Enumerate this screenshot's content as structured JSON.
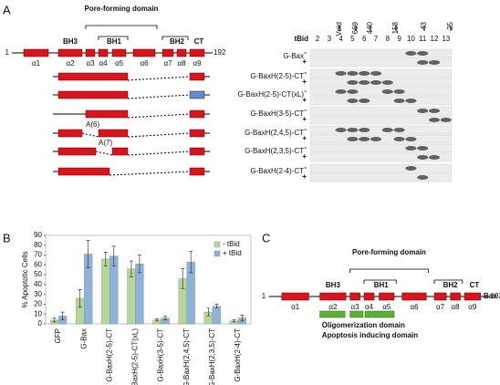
{
  "panel_a": {
    "label": "A",
    "start": "1",
    "end": "192",
    "pore_title": "Pore-forming domain",
    "domains": [
      "BH3",
      "BH1",
      "BH2",
      "CT"
    ],
    "helices": [
      "α1",
      "α2",
      "α3",
      "α4",
      "α5",
      "α6",
      "α7",
      "α8",
      "α9"
    ],
    "annotations": [
      "A(6)",
      "A(7)"
    ],
    "constructs": [
      "G-Bax",
      "G-BaxH(2-5)-CT",
      "G-BaxH(2-5)-CT(xL)",
      "G-BaxH(3-5)-CT",
      "G-BaxH(2,4,5)-CT",
      "G-BaxH(2,3,5)-CT",
      "G-BaxH(2-4)-CT"
    ],
    "gel": {
      "tbid": "tBid",
      "lanes": [
        "2",
        "3",
        "4",
        "5",
        "6",
        "7",
        "8",
        "9",
        "10",
        "11",
        "12",
        "13"
      ],
      "markers": [
        "Void",
        "669",
        "440",
        "158",
        "43",
        "25"
      ],
      "signs": [
        "-",
        "+"
      ]
    }
  },
  "chart_data": {
    "type": "bar",
    "label": "B",
    "y_label": "% Apoptotic Cells",
    "categories": [
      "GFP",
      "G-Bax",
      "G-BaxH(2-5)-CT",
      "G-BaxH(2-5)-CT(xL)",
      "G-BaxH(3-5)-CT",
      "G-BaxH(2,4,5)-CT",
      "G-BaxH(2,3,5)-CT",
      "G-BaxH(2-4)-CT"
    ],
    "series": [
      {
        "name": "- tBid",
        "color": "#b5d89a",
        "values": [
          4,
          26,
          66,
          56,
          4,
          46,
          12,
          3
        ],
        "errors": [
          2,
          9,
          7,
          8,
          1,
          10,
          4,
          1
        ]
      },
      {
        "name": "+ tBid",
        "color": "#8fb2dc",
        "values": [
          8,
          71,
          69,
          61,
          6,
          63,
          18,
          6
        ],
        "errors": [
          4,
          14,
          10,
          9,
          2,
          11,
          2,
          3
        ]
      }
    ],
    "ylim": [
      0,
      90
    ],
    "yticks": [
      0,
      10,
      20,
      30,
      40,
      50,
      60,
      70,
      80,
      90
    ],
    "legend": "upper right"
  },
  "panel_c": {
    "label": "C",
    "pore_title": "Pore-forming domain",
    "domains": [
      "BH3",
      "BH1",
      "BH2",
      "CT"
    ],
    "helices": [
      "α1",
      "α2",
      "α3",
      "α4",
      "α5",
      "α6",
      "α7",
      "α8",
      "α9"
    ],
    "start": "1",
    "end": "192",
    "protein": "Bax",
    "oligo": "Oligomerization domain",
    "apoptosis": "Apoptosis inducing domain"
  }
}
